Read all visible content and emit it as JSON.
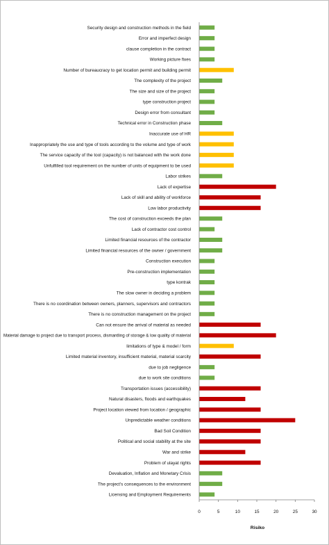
{
  "chart_data": {
    "type": "bar",
    "orientation": "horizontal",
    "xlabel": "Risiko",
    "xlim": [
      0,
      30
    ],
    "xticks": [
      0,
      5,
      10,
      15,
      20,
      25,
      30
    ],
    "grid": false,
    "legend": "none",
    "colors": {
      "low": "#70ad47",
      "medium": "#ffc000",
      "high": "#c00000"
    },
    "categories": [
      "Security design and construction methods in the field",
      "Error and imperfect design",
      "clause completion in the contract",
      "Working picture fixes",
      "Number of bureaucracy to get location permit and building permit",
      "The complexity of the project",
      "The size and size of the project",
      "type construction project",
      "Design error from consultant",
      "Technical error in Construction phase",
      "Inaccurate use of HR",
      "Inappropriately the use and type of tools according to the volume and type of work",
      "The service capacity of the tool (capacity) is not balanced with the work done",
      "Unfulfilled tool requirement on the number of units of equipment to be used",
      "Labor strikes",
      "Lack of expertise",
      "Lack of skill and ability of workforce",
      "Low labor productivity",
      "The cost of construction exceeds the plan",
      "Lack of contractor cost control",
      "Limited financial resources of the contractor",
      "Limited financial resources of the owner / government",
      "Construction execution",
      "Pre-construction implementation",
      "type kontrak",
      "The slow owner in deciding a problem",
      "There is no coordination between owners, planners, supervisors and contractors",
      "There is no construction management on the project",
      "Can not ensure the arrival of material as needed",
      "Material damage to project due to transport process, dismantling of storage & low quality of material",
      "limitations of type & model / form",
      "Limited material inventory, insufficient material, material scarcity",
      "due to job negligence",
      "due to work site conditions",
      "Transportation issues (accessibility)",
      "Natural disasters, floods and earthquakes",
      "Project location viewed from location / geographic",
      "Unpredictable weather conditions",
      "Bad Soil Condition",
      "Political and social stability at the site",
      "War and strike",
      "Problem of ulayat rights",
      "Devaluation, Inflation and Monetary Crisis",
      "The project's consequences to the environment",
      "Licensing and Employment Requirements"
    ],
    "values": [
      4,
      4,
      4,
      4,
      9,
      6,
      4,
      4,
      4,
      6,
      9,
      9,
      9,
      9,
      6,
      20,
      16,
      16,
      6,
      4,
      6,
      6,
      4,
      4,
      4,
      4,
      4,
      4,
      16,
      20,
      9,
      16,
      4,
      4,
      16,
      12,
      16,
      25,
      16,
      16,
      12,
      16,
      6,
      6,
      4
    ],
    "levels": [
      "low",
      "low",
      "low",
      "low",
      "medium",
      "low",
      "low",
      "low",
      "low",
      "low",
      "medium",
      "medium",
      "medium",
      "medium",
      "low",
      "high",
      "high",
      "high",
      "low",
      "low",
      "low",
      "low",
      "low",
      "low",
      "low",
      "low",
      "low",
      "low",
      "high",
      "high",
      "medium",
      "high",
      "low",
      "low",
      "high",
      "high",
      "high",
      "high",
      "high",
      "high",
      "high",
      "high",
      "low",
      "low",
      "low"
    ]
  }
}
